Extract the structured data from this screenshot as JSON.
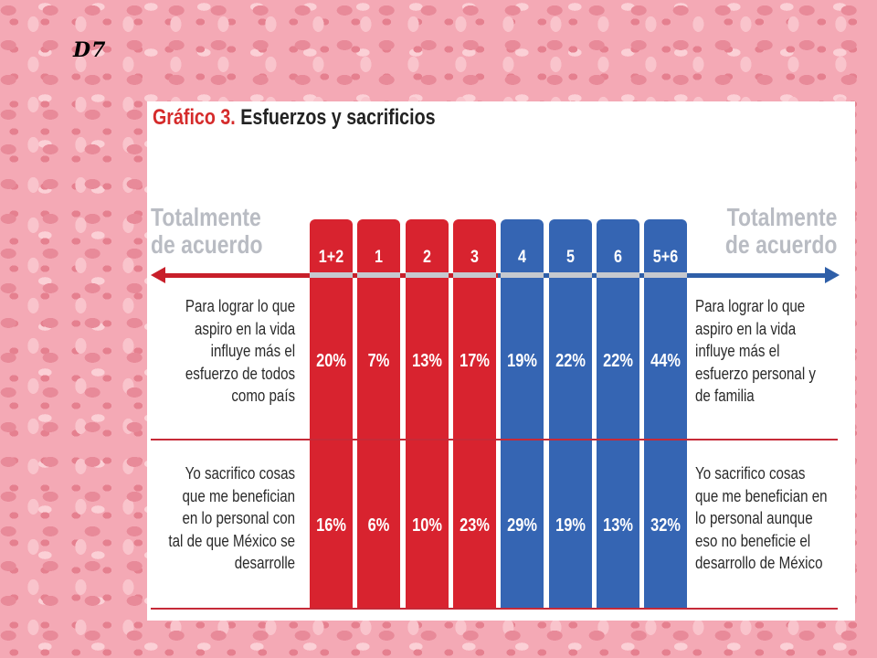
{
  "slide_tag": "D7",
  "title": {
    "prefix": "Gráfico 3.",
    "main": "Esfuerzos y sacrificios"
  },
  "left_header": [
    "Totalmente",
    "de acuerdo"
  ],
  "right_header": [
    "Totalmente",
    "de acuerdo"
  ],
  "colors": {
    "red": "#d8232f",
    "blue": "#3565b3",
    "grey_text": "#b9bcc3",
    "rule": "#c62a38"
  },
  "chart_data": {
    "type": "table",
    "title": "Gráfico 3. Esfuerzos y sacrificios",
    "categories": [
      "1+2",
      "1",
      "2",
      "3",
      "4",
      "5",
      "6",
      "5+6"
    ],
    "category_colors": [
      "red",
      "red",
      "red",
      "red",
      "blue",
      "blue",
      "blue",
      "blue"
    ],
    "rows": [
      {
        "left_statement": [
          "Para lograr lo que",
          "aspiro en la vida",
          "influye más el",
          "esfuerzo de todos",
          "como país"
        ],
        "right_statement": [
          "Para lograr lo que",
          "aspiro en la vida",
          "influye más el",
          "esfuerzo personal y",
          "de familia"
        ],
        "values": [
          20,
          7,
          13,
          17,
          19,
          22,
          22,
          44
        ],
        "labels": [
          "20%",
          "7%",
          "13%",
          "17%",
          "19%",
          "22%",
          "22%",
          "44%"
        ]
      },
      {
        "left_statement": [
          "Yo sacrifico cosas",
          "que me benefician",
          "en lo personal con",
          "tal de que México se",
          "desarrolle"
        ],
        "right_statement": [
          "Yo sacrifico cosas",
          "que me benefician en",
          "lo personal aunque",
          "eso no beneficie el",
          "desarrollo de México"
        ],
        "values": [
          16,
          6,
          10,
          23,
          29,
          19,
          13,
          32
        ],
        "labels": [
          "16%",
          "6%",
          "10%",
          "23%",
          "29%",
          "19%",
          "13%",
          "32%"
        ]
      }
    ]
  }
}
